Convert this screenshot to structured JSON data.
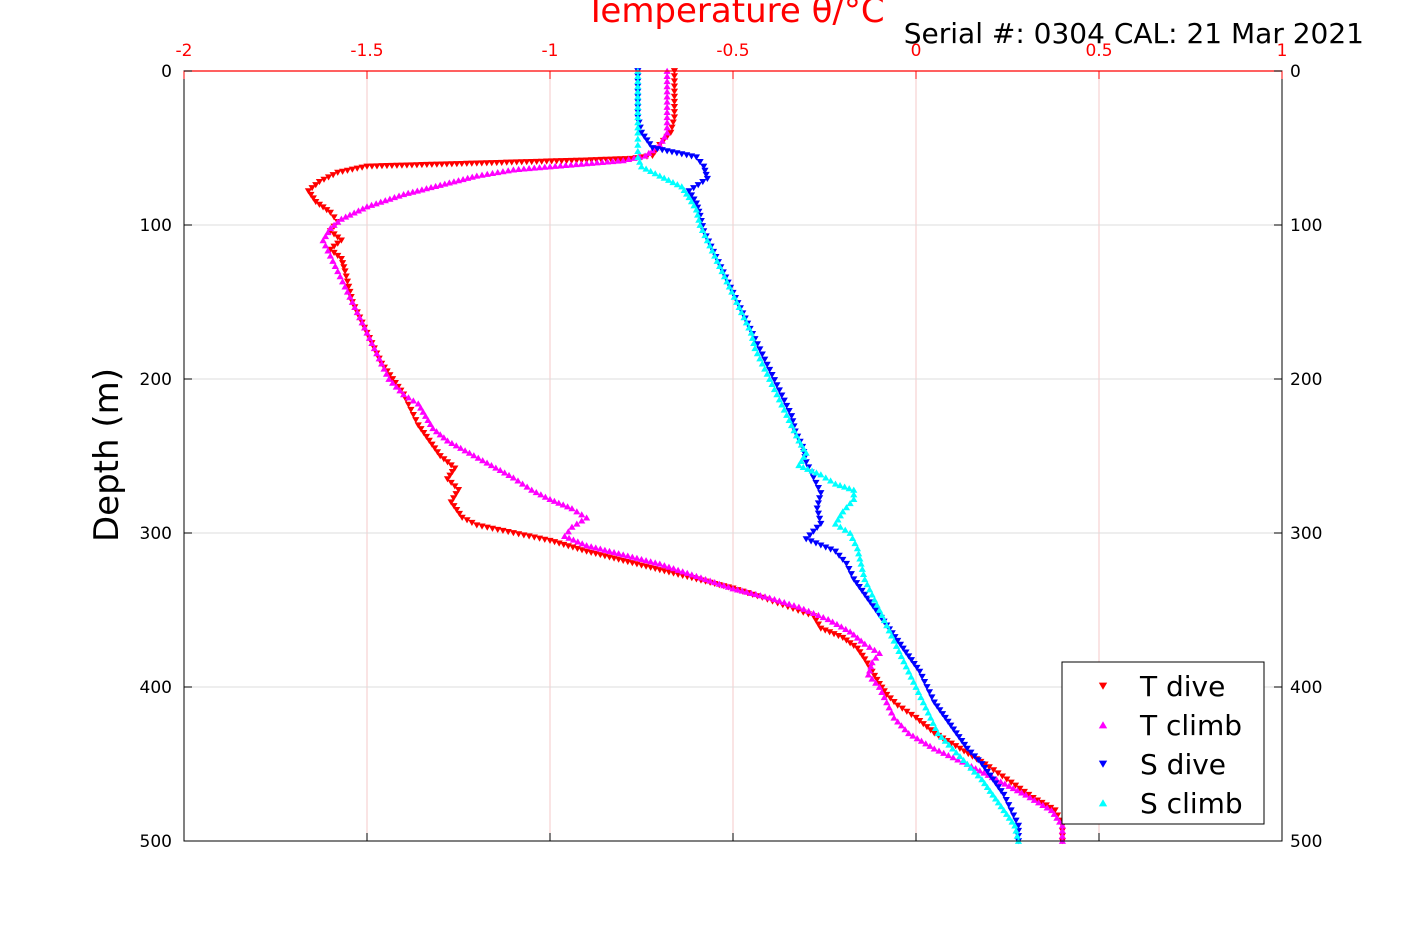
{
  "header": {
    "serial_text": "Serial #: 0304  CAL: 21 Mar 2021"
  },
  "chart_data": {
    "type": "scatter",
    "title": "",
    "xlabel": "Temperature θ/°C",
    "ylabel": "Depth (m)",
    "xlim": [
      -2,
      1
    ],
    "ylim": [
      0,
      500
    ],
    "y_inverted": true,
    "x_axis_position": "top",
    "x_ticks": [
      -2,
      -1.5,
      -1,
      -0.5,
      0,
      0.5,
      1
    ],
    "x_tick_labels": [
      "-2",
      "-1.5",
      "-1",
      "-0.5",
      "0",
      "0.5",
      "1"
    ],
    "y_ticks": [
      0,
      100,
      200,
      300,
      400,
      500
    ],
    "y_tick_labels": [
      "0",
      "100",
      "200",
      "300",
      "400",
      "500"
    ],
    "grid": true,
    "legend_position": "bottom-right",
    "colors": {
      "axis_x": "#ff0000",
      "axis_y": "#000000",
      "grid_x": "#f5c8c8",
      "grid_y": "#dddddd"
    },
    "series": [
      {
        "name": "T dive",
        "marker": "triangle-down",
        "color": "#ff0000",
        "points": [
          [
            -0.66,
            0
          ],
          [
            -0.66,
            10
          ],
          [
            -0.66,
            20
          ],
          [
            -0.66,
            30
          ],
          [
            -0.67,
            40
          ],
          [
            -0.7,
            48
          ],
          [
            -0.72,
            55
          ],
          [
            -0.78,
            57
          ],
          [
            -0.9,
            58
          ],
          [
            -1.05,
            59
          ],
          [
            -1.2,
            60
          ],
          [
            -1.35,
            61
          ],
          [
            -1.5,
            62
          ],
          [
            -1.58,
            66
          ],
          [
            -1.63,
            72
          ],
          [
            -1.66,
            78
          ],
          [
            -1.64,
            85
          ],
          [
            -1.6,
            92
          ],
          [
            -1.58,
            98
          ],
          [
            -1.6,
            104
          ],
          [
            -1.57,
            110
          ],
          [
            -1.6,
            116
          ],
          [
            -1.57,
            122
          ],
          [
            -1.56,
            130
          ],
          [
            -1.55,
            140
          ],
          [
            -1.54,
            150
          ],
          [
            -1.52,
            160
          ],
          [
            -1.5,
            170
          ],
          [
            -1.48,
            180
          ],
          [
            -1.46,
            190
          ],
          [
            -1.43,
            200
          ],
          [
            -1.4,
            210
          ],
          [
            -1.38,
            220
          ],
          [
            -1.36,
            230
          ],
          [
            -1.33,
            240
          ],
          [
            -1.3,
            250
          ],
          [
            -1.26,
            258
          ],
          [
            -1.28,
            265
          ],
          [
            -1.25,
            272
          ],
          [
            -1.27,
            280
          ],
          [
            -1.24,
            290
          ],
          [
            -1.2,
            295
          ],
          [
            -1.1,
            300
          ],
          [
            -1.0,
            305
          ],
          [
            -0.9,
            312
          ],
          [
            -0.8,
            318
          ],
          [
            -0.7,
            324
          ],
          [
            -0.6,
            330
          ],
          [
            -0.5,
            336
          ],
          [
            -0.42,
            342
          ],
          [
            -0.35,
            348
          ],
          [
            -0.28,
            354
          ],
          [
            -0.26,
            362
          ],
          [
            -0.2,
            368
          ],
          [
            -0.16,
            375
          ],
          [
            -0.14,
            382
          ],
          [
            -0.12,
            390
          ],
          [
            -0.1,
            398
          ],
          [
            -0.08,
            405
          ],
          [
            -0.05,
            412
          ],
          [
            0.0,
            420
          ],
          [
            0.05,
            430
          ],
          [
            0.12,
            440
          ],
          [
            0.2,
            452
          ],
          [
            0.26,
            462
          ],
          [
            0.32,
            472
          ],
          [
            0.38,
            480
          ],
          [
            0.4,
            490
          ],
          [
            0.4,
            500
          ]
        ]
      },
      {
        "name": "T climb",
        "marker": "triangle-up",
        "color": "#ff00ff",
        "points": [
          [
            0.4,
            500
          ],
          [
            0.4,
            490
          ],
          [
            0.37,
            480
          ],
          [
            0.3,
            470
          ],
          [
            0.22,
            460
          ],
          [
            0.14,
            450
          ],
          [
            0.05,
            440
          ],
          [
            -0.02,
            430
          ],
          [
            -0.06,
            420
          ],
          [
            -0.08,
            410
          ],
          [
            -0.1,
            400
          ],
          [
            -0.13,
            392
          ],
          [
            -0.12,
            384
          ],
          [
            -0.1,
            378
          ],
          [
            -0.14,
            372
          ],
          [
            -0.18,
            364
          ],
          [
            -0.24,
            356
          ],
          [
            -0.32,
            348
          ],
          [
            -0.4,
            342
          ],
          [
            -0.5,
            336
          ],
          [
            -0.6,
            328
          ],
          [
            -0.7,
            320
          ],
          [
            -0.8,
            314
          ],
          [
            -0.9,
            308
          ],
          [
            -0.96,
            302
          ],
          [
            -0.94,
            296
          ],
          [
            -0.9,
            290
          ],
          [
            -0.94,
            284
          ],
          [
            -1.0,
            278
          ],
          [
            -1.05,
            272
          ],
          [
            -1.1,
            264
          ],
          [
            -1.16,
            256
          ],
          [
            -1.22,
            248
          ],
          [
            -1.28,
            240
          ],
          [
            -1.32,
            232
          ],
          [
            -1.34,
            224
          ],
          [
            -1.36,
            216
          ],
          [
            -1.4,
            210
          ],
          [
            -1.44,
            200
          ],
          [
            -1.46,
            190
          ],
          [
            -1.48,
            180
          ],
          [
            -1.5,
            170
          ],
          [
            -1.52,
            160
          ],
          [
            -1.54,
            150
          ],
          [
            -1.56,
            140
          ],
          [
            -1.58,
            130
          ],
          [
            -1.6,
            120
          ],
          [
            -1.62,
            110
          ],
          [
            -1.6,
            102
          ],
          [
            -1.57,
            96
          ],
          [
            -1.5,
            88
          ],
          [
            -1.4,
            80
          ],
          [
            -1.3,
            74
          ],
          [
            -1.2,
            68
          ],
          [
            -1.1,
            64
          ],
          [
            -1.0,
            62
          ],
          [
            -0.9,
            60
          ],
          [
            -0.8,
            58
          ],
          [
            -0.74,
            55
          ],
          [
            -0.7,
            48
          ],
          [
            -0.68,
            40
          ],
          [
            -0.68,
            30
          ],
          [
            -0.68,
            20
          ],
          [
            -0.68,
            10
          ],
          [
            -0.68,
            0
          ]
        ]
      },
      {
        "name": "S dive",
        "marker": "triangle-down",
        "color": "#0000ff",
        "points": [
          [
            -0.76,
            0
          ],
          [
            -0.76,
            10
          ],
          [
            -0.76,
            20
          ],
          [
            -0.76,
            30
          ],
          [
            -0.75,
            40
          ],
          [
            -0.72,
            50
          ],
          [
            -0.6,
            56
          ],
          [
            -0.58,
            62
          ],
          [
            -0.57,
            70
          ],
          [
            -0.62,
            78
          ],
          [
            -0.6,
            86
          ],
          [
            -0.59,
            94
          ],
          [
            -0.58,
            104
          ],
          [
            -0.56,
            114
          ],
          [
            -0.54,
            124
          ],
          [
            -0.52,
            134
          ],
          [
            -0.5,
            144
          ],
          [
            -0.48,
            154
          ],
          [
            -0.46,
            164
          ],
          [
            -0.44,
            174
          ],
          [
            -0.42,
            184
          ],
          [
            -0.4,
            194
          ],
          [
            -0.38,
            204
          ],
          [
            -0.36,
            214
          ],
          [
            -0.34,
            224
          ],
          [
            -0.33,
            234
          ],
          [
            -0.31,
            244
          ],
          [
            -0.3,
            254
          ],
          [
            -0.28,
            264
          ],
          [
            -0.26,
            274
          ],
          [
            -0.27,
            284
          ],
          [
            -0.26,
            294
          ],
          [
            -0.3,
            304
          ],
          [
            -0.22,
            312
          ],
          [
            -0.19,
            320
          ],
          [
            -0.17,
            330
          ],
          [
            -0.14,
            340
          ],
          [
            -0.11,
            350
          ],
          [
            -0.08,
            360
          ],
          [
            -0.05,
            370
          ],
          [
            -0.02,
            380
          ],
          [
            0.01,
            390
          ],
          [
            0.03,
            400
          ],
          [
            0.05,
            410
          ],
          [
            0.08,
            420
          ],
          [
            0.11,
            430
          ],
          [
            0.14,
            440
          ],
          [
            0.18,
            450
          ],
          [
            0.21,
            460
          ],
          [
            0.24,
            470
          ],
          [
            0.26,
            480
          ],
          [
            0.28,
            490
          ],
          [
            0.28,
            500
          ]
        ]
      },
      {
        "name": "S climb",
        "marker": "triangle-up",
        "color": "#00ffff",
        "points": [
          [
            0.28,
            500
          ],
          [
            0.27,
            490
          ],
          [
            0.24,
            480
          ],
          [
            0.21,
            470
          ],
          [
            0.18,
            460
          ],
          [
            0.14,
            450
          ],
          [
            0.1,
            440
          ],
          [
            0.06,
            430
          ],
          [
            0.04,
            420
          ],
          [
            0.02,
            410
          ],
          [
            0.0,
            400
          ],
          [
            -0.02,
            390
          ],
          [
            -0.04,
            380
          ],
          [
            -0.06,
            370
          ],
          [
            -0.08,
            360
          ],
          [
            -0.1,
            350
          ],
          [
            -0.12,
            340
          ],
          [
            -0.14,
            330
          ],
          [
            -0.15,
            320
          ],
          [
            -0.16,
            310
          ],
          [
            -0.18,
            300
          ],
          [
            -0.22,
            294
          ],
          [
            -0.2,
            286
          ],
          [
            -0.17,
            278
          ],
          [
            -0.17,
            272
          ],
          [
            -0.22,
            268
          ],
          [
            -0.26,
            262
          ],
          [
            -0.32,
            256
          ],
          [
            -0.3,
            248
          ],
          [
            -0.32,
            240
          ],
          [
            -0.34,
            230
          ],
          [
            -0.36,
            220
          ],
          [
            -0.38,
            210
          ],
          [
            -0.4,
            200
          ],
          [
            -0.42,
            190
          ],
          [
            -0.44,
            180
          ],
          [
            -0.45,
            170
          ],
          [
            -0.47,
            160
          ],
          [
            -0.49,
            150
          ],
          [
            -0.51,
            140
          ],
          [
            -0.53,
            130
          ],
          [
            -0.55,
            120
          ],
          [
            -0.57,
            110
          ],
          [
            -0.59,
            100
          ],
          [
            -0.6,
            90
          ],
          [
            -0.62,
            82
          ],
          [
            -0.64,
            75
          ],
          [
            -0.7,
            68
          ],
          [
            -0.75,
            62
          ],
          [
            -0.76,
            56
          ],
          [
            -0.76,
            48
          ],
          [
            -0.76,
            40
          ],
          [
            -0.76,
            30
          ],
          [
            -0.76,
            20
          ],
          [
            -0.76,
            10
          ],
          [
            -0.76,
            0
          ]
        ]
      }
    ]
  }
}
